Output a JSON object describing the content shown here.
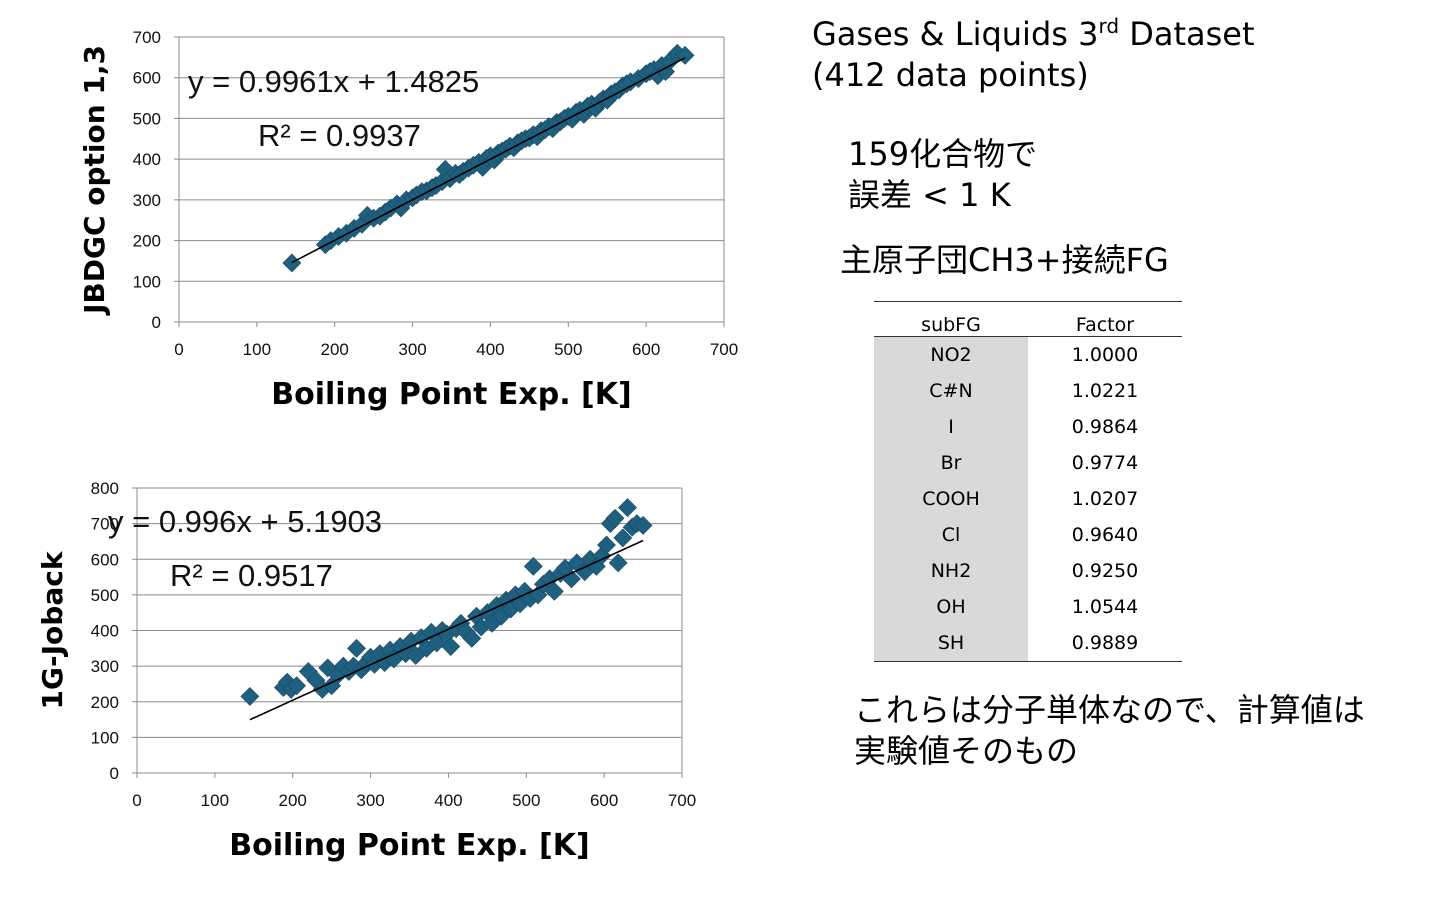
{
  "chart_data": [
    {
      "type": "scatter",
      "title": "",
      "xlabel": "Boiling Point Exp. [K]",
      "ylabel": "JBDGC option 1,3",
      "xlim": [
        0,
        700
      ],
      "ylim": [
        0,
        700
      ],
      "x_ticks": [
        0,
        100,
        200,
        300,
        400,
        500,
        600,
        700
      ],
      "y_ticks": [
        0,
        100,
        200,
        300,
        400,
        500,
        600,
        700
      ],
      "grid": "horizontal",
      "marker_color": "#1F5F7F",
      "trendline": {
        "slope": 0.9961,
        "intercept": 1.4825,
        "x_range": [
          145,
          650
        ]
      },
      "equation": "y = 0.9961x + 1.4825",
      "r2": "R² = 0.9937",
      "points": [
        [
          145,
          145
        ],
        [
          188,
          190
        ],
        [
          195,
          200
        ],
        [
          205,
          210
        ],
        [
          215,
          218
        ],
        [
          225,
          230
        ],
        [
          235,
          240
        ],
        [
          242,
          262
        ],
        [
          250,
          255
        ],
        [
          258,
          260
        ],
        [
          265,
          270
        ],
        [
          272,
          280
        ],
        [
          280,
          290
        ],
        [
          285,
          280
        ],
        [
          292,
          300
        ],
        [
          300,
          305
        ],
        [
          305,
          312
        ],
        [
          312,
          320
        ],
        [
          318,
          322
        ],
        [
          325,
          330
        ],
        [
          330,
          335
        ],
        [
          338,
          345
        ],
        [
          342,
          375
        ],
        [
          348,
          352
        ],
        [
          355,
          365
        ],
        [
          360,
          362
        ],
        [
          365,
          370
        ],
        [
          372,
          378
        ],
        [
          378,
          385
        ],
        [
          385,
          392
        ],
        [
          390,
          380
        ],
        [
          395,
          402
        ],
        [
          400,
          408
        ],
        [
          405,
          398
        ],
        [
          410,
          415
        ],
        [
          415,
          420
        ],
        [
          420,
          425
        ],
        [
          425,
          432
        ],
        [
          430,
          428
        ],
        [
          435,
          440
        ],
        [
          440,
          445
        ],
        [
          445,
          450
        ],
        [
          450,
          452
        ],
        [
          455,
          460
        ],
        [
          460,
          455
        ],
        [
          465,
          470
        ],
        [
          470,
          472
        ],
        [
          475,
          480
        ],
        [
          480,
          475
        ],
        [
          485,
          490
        ],
        [
          490,
          492
        ],
        [
          495,
          500
        ],
        [
          500,
          505
        ],
        [
          505,
          498
        ],
        [
          510,
          515
        ],
        [
          515,
          520
        ],
        [
          520,
          510
        ],
        [
          525,
          530
        ],
        [
          530,
          535
        ],
        [
          535,
          525
        ],
        [
          540,
          540
        ],
        [
          545,
          548
        ],
        [
          550,
          545
        ],
        [
          555,
          560
        ],
        [
          560,
          565
        ],
        [
          565,
          570
        ],
        [
          570,
          580
        ],
        [
          575,
          585
        ],
        [
          580,
          590
        ],
        [
          590,
          598
        ],
        [
          600,
          610
        ],
        [
          605,
          615
        ],
        [
          610,
          620
        ],
        [
          615,
          605
        ],
        [
          620,
          630
        ],
        [
          625,
          615
        ],
        [
          630,
          640
        ],
        [
          640,
          660
        ],
        [
          650,
          655
        ]
      ]
    },
    {
      "type": "scatter",
      "title": "",
      "xlabel": "Boiling Point Exp. [K]",
      "ylabel": "1G-Joback",
      "xlim": [
        0,
        700
      ],
      "ylim": [
        0,
        800
      ],
      "x_ticks": [
        0,
        100,
        200,
        300,
        400,
        500,
        600,
        700
      ],
      "y_ticks": [
        0,
        100,
        200,
        300,
        400,
        500,
        600,
        700,
        800
      ],
      "grid": "horizontal",
      "marker_color": "#1F5F7F",
      "trendline": {
        "slope": 0.996,
        "intercept": 5.1903,
        "x_range": [
          145,
          650
        ]
      },
      "equation": "y = 0.996x + 5.1903",
      "r2": "R² = 0.9517",
      "points": [
        [
          145,
          215
        ],
        [
          188,
          240
        ],
        [
          193,
          255
        ],
        [
          198,
          235
        ],
        [
          205,
          245
        ],
        [
          220,
          285
        ],
        [
          230,
          260
        ],
        [
          238,
          235
        ],
        [
          245,
          295
        ],
        [
          250,
          245
        ],
        [
          258,
          275
        ],
        [
          265,
          300
        ],
        [
          272,
          285
        ],
        [
          278,
          300
        ],
        [
          282,
          350
        ],
        [
          288,
          290
        ],
        [
          295,
          310
        ],
        [
          300,
          325
        ],
        [
          305,
          305
        ],
        [
          312,
          335
        ],
        [
          318,
          310
        ],
        [
          325,
          345
        ],
        [
          330,
          320
        ],
        [
          338,
          355
        ],
        [
          345,
          335
        ],
        [
          352,
          370
        ],
        [
          358,
          330
        ],
        [
          365,
          380
        ],
        [
          372,
          350
        ],
        [
          378,
          395
        ],
        [
          385,
          365
        ],
        [
          392,
          400
        ],
        [
          398,
          390
        ],
        [
          403,
          355
        ],
        [
          410,
          405
        ],
        [
          416,
          420
        ],
        [
          423,
          395
        ],
        [
          430,
          378
        ],
        [
          436,
          440
        ],
        [
          442,
          410
        ],
        [
          450,
          450
        ],
        [
          456,
          420
        ],
        [
          462,
          470
        ],
        [
          468,
          440
        ],
        [
          474,
          485
        ],
        [
          480,
          460
        ],
        [
          486,
          500
        ],
        [
          492,
          475
        ],
        [
          498,
          510
        ],
        [
          505,
          490
        ],
        [
          509,
          580
        ],
        [
          515,
          500
        ],
        [
          522,
          530
        ],
        [
          530,
          545
        ],
        [
          536,
          510
        ],
        [
          544,
          560
        ],
        [
          550,
          575
        ],
        [
          558,
          545
        ],
        [
          565,
          590
        ],
        [
          575,
          565
        ],
        [
          582,
          600
        ],
        [
          590,
          580
        ],
        [
          597,
          610
        ],
        [
          603,
          640
        ],
        [
          608,
          700
        ],
        [
          614,
          715
        ],
        [
          618,
          590
        ],
        [
          624,
          660
        ],
        [
          630,
          745
        ],
        [
          636,
          690
        ],
        [
          642,
          700
        ],
        [
          650,
          695
        ]
      ]
    }
  ],
  "dataset_title": {
    "line1_main": "Gases & Liquids 3",
    "line1_sup": "rd",
    "line1_rest": " Dataset",
    "line2": "(412 data points)"
  },
  "notes": {
    "line1": "159化合物で",
    "line2": "誤差 < 1 K",
    "group_line": "主原子団CH3+接続FG"
  },
  "factor_table": {
    "headers": [
      "subFG",
      "Factor"
    ],
    "rows": [
      [
        "NO2",
        "1.0000"
      ],
      [
        "C#N",
        "1.0221"
      ],
      [
        "I",
        "0.9864"
      ],
      [
        "Br",
        "0.9774"
      ],
      [
        "COOH",
        "1.0207"
      ],
      [
        "Cl",
        "0.9640"
      ],
      [
        "NH2",
        "0.9250"
      ],
      [
        "OH",
        "1.0544"
      ],
      [
        "SH",
        "0.9889"
      ]
    ]
  },
  "conclusion": {
    "line1": "これらは分子単体なので、計算値は",
    "line2": "実験値そのもの"
  }
}
